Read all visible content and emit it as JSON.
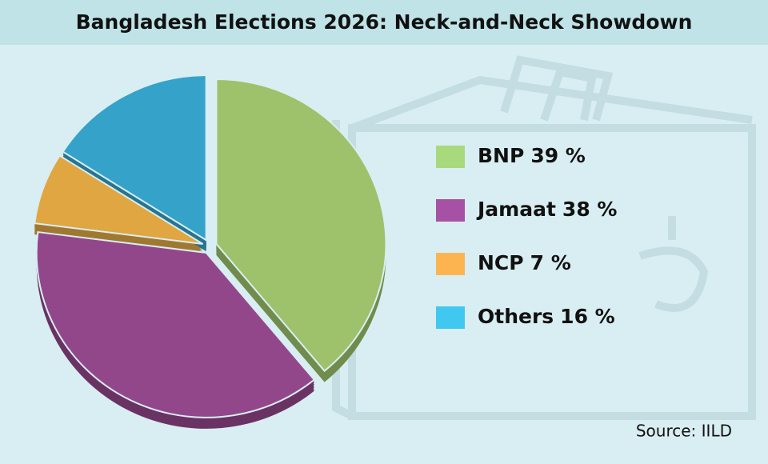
{
  "chart_data": {
    "type": "pie",
    "title": "Bangladesh Elections 2026: Neck-and-Neck Showdown",
    "categories": [
      "BNP",
      "Jamaat",
      "NCP",
      "Others"
    ],
    "values": [
      39,
      38,
      7,
      16
    ],
    "value_labels": [
      "39 %",
      "38 %",
      "7 %",
      "16 %"
    ],
    "colors": [
      "#9dc26b",
      "#93478b",
      "#e0a642",
      "#35a3c9"
    ],
    "legend_colors": [
      "#a8d97c",
      "#a651a4",
      "#fbb44f",
      "#40c8f0"
    ],
    "source": "Source: IILD"
  }
}
